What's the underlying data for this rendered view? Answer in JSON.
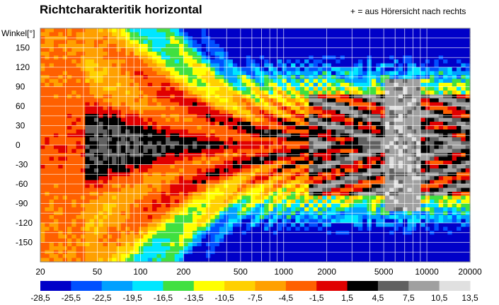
{
  "chart_data": {
    "type": "heatmap",
    "title": "Richtcharakteritik horizontal",
    "note": "+ = aus Hörersicht nach rechts",
    "ylabel": "Winkel[°]",
    "x_scale": "log",
    "xlim": [
      20,
      20000
    ],
    "ylim": [
      -180,
      180
    ],
    "x_ticks": [
      "20",
      "50",
      "100",
      "200",
      "500",
      "1000",
      "2000",
      "5000",
      "10000",
      "20000"
    ],
    "x_tick_values": [
      20,
      50,
      100,
      200,
      500,
      1000,
      2000,
      5000,
      10000,
      20000
    ],
    "y_ticks": [
      "150",
      "120",
      "90",
      "60",
      "30",
      "0",
      "-30",
      "-60",
      "-90",
      "-120",
      "-150"
    ],
    "y_tick_values": [
      150,
      120,
      90,
      60,
      30,
      0,
      -30,
      -60,
      -90,
      -120,
      -150
    ],
    "grid": true,
    "colorbar": {
      "labels": [
        "-28,5",
        "-25,5",
        "-22,5",
        "-19,5",
        "-16,5",
        "-13,5",
        "-10,5",
        "-7,5",
        "-4,5",
        "-1,5",
        "1,5",
        "4,5",
        "7,5",
        "10,5",
        "13,5"
      ],
      "colors": [
        "#0000c8",
        "#0050ff",
        "#00a0ff",
        "#00e6ff",
        "#40e040",
        "#ffff00",
        "#ffd000",
        "#ffa000",
        "#ff6000",
        "#e00000",
        "#000000",
        "#606060",
        "#a0a0a0",
        "#e0e0e0"
      ]
    }
  }
}
